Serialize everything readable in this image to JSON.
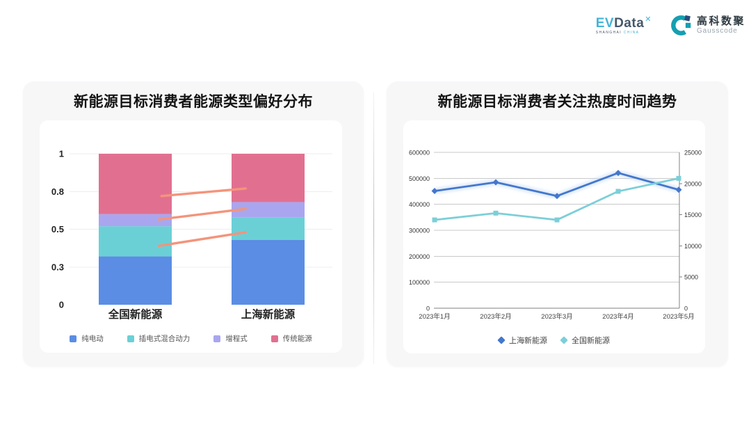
{
  "header": {
    "evdata": {
      "ev": "EV",
      "data": "Data",
      "sup": "✕",
      "sub_left": "SHANGHAI",
      "sub_right": "CHINA"
    },
    "gausscode": {
      "cn": "高科数聚",
      "en": "Gausscode",
      "icon_color": "#159fb1",
      "icon_accent": "#2e4a78"
    }
  },
  "chart_data": [
    {
      "type": "bar",
      "stacked": true,
      "title": "新能源目标消费者能源类型偏好分布",
      "categories": [
        "全国新能源",
        "上海新能源"
      ],
      "series": [
        {
          "name": "纯电动",
          "color": "#5b8de4",
          "values": [
            0.32,
            0.43
          ]
        },
        {
          "name": "插电式混合动力",
          "color": "#6bd0d6",
          "values": [
            0.2,
            0.15
          ]
        },
        {
          "name": "增程式",
          "color": "#a9a6ef",
          "values": [
            0.08,
            0.1
          ]
        },
        {
          "name": "传统能源",
          "color": "#e17090",
          "values": [
            0.4,
            0.32
          ]
        }
      ],
      "ylim": [
        0,
        1
      ],
      "ytick_labels": [
        "0",
        "0.3",
        "0.5",
        "0.8",
        "1"
      ],
      "grid": true,
      "legend_position": "bottom",
      "annotation_color": "#f4947b",
      "annotation_lines": [
        {
          "x1": 0.35,
          "y1": 0.72,
          "x2": 0.67,
          "y2": 0.77
        },
        {
          "x1": 0.34,
          "y1": 0.565,
          "x2": 0.67,
          "y2": 0.635
        },
        {
          "x1": 0.34,
          "y1": 0.39,
          "x2": 0.67,
          "y2": 0.48
        }
      ]
    },
    {
      "type": "line",
      "title": "新能源目标消费者关注热度时间趋势",
      "x": [
        "2023年1月",
        "2023年2月",
        "2023年3月",
        "2023年4月",
        "2023年5月"
      ],
      "series": [
        {
          "name": "上海新能源",
          "color": "#4477cc",
          "halo": "#c6dcf5",
          "axis": "right",
          "marker": "diamond",
          "glow": true,
          "values": [
            18800,
            20200,
            18000,
            21700,
            19000
          ]
        },
        {
          "name": "全国新能源",
          "color": "#7ccfd8",
          "halo": "#d9f1f4",
          "axis": "left",
          "marker": "square",
          "glow": false,
          "values": [
            340000,
            366000,
            340000,
            450000,
            500000
          ]
        }
      ],
      "left_axis": {
        "min": 0,
        "max": 600000,
        "ticks": [
          0,
          100000,
          200000,
          300000,
          400000,
          500000,
          600000
        ]
      },
      "right_axis": {
        "min": 0,
        "max": 25000,
        "ticks": [
          0,
          5000,
          10000,
          15000,
          20000,
          25000
        ]
      },
      "grid": true,
      "legend_position": "bottom"
    }
  ]
}
